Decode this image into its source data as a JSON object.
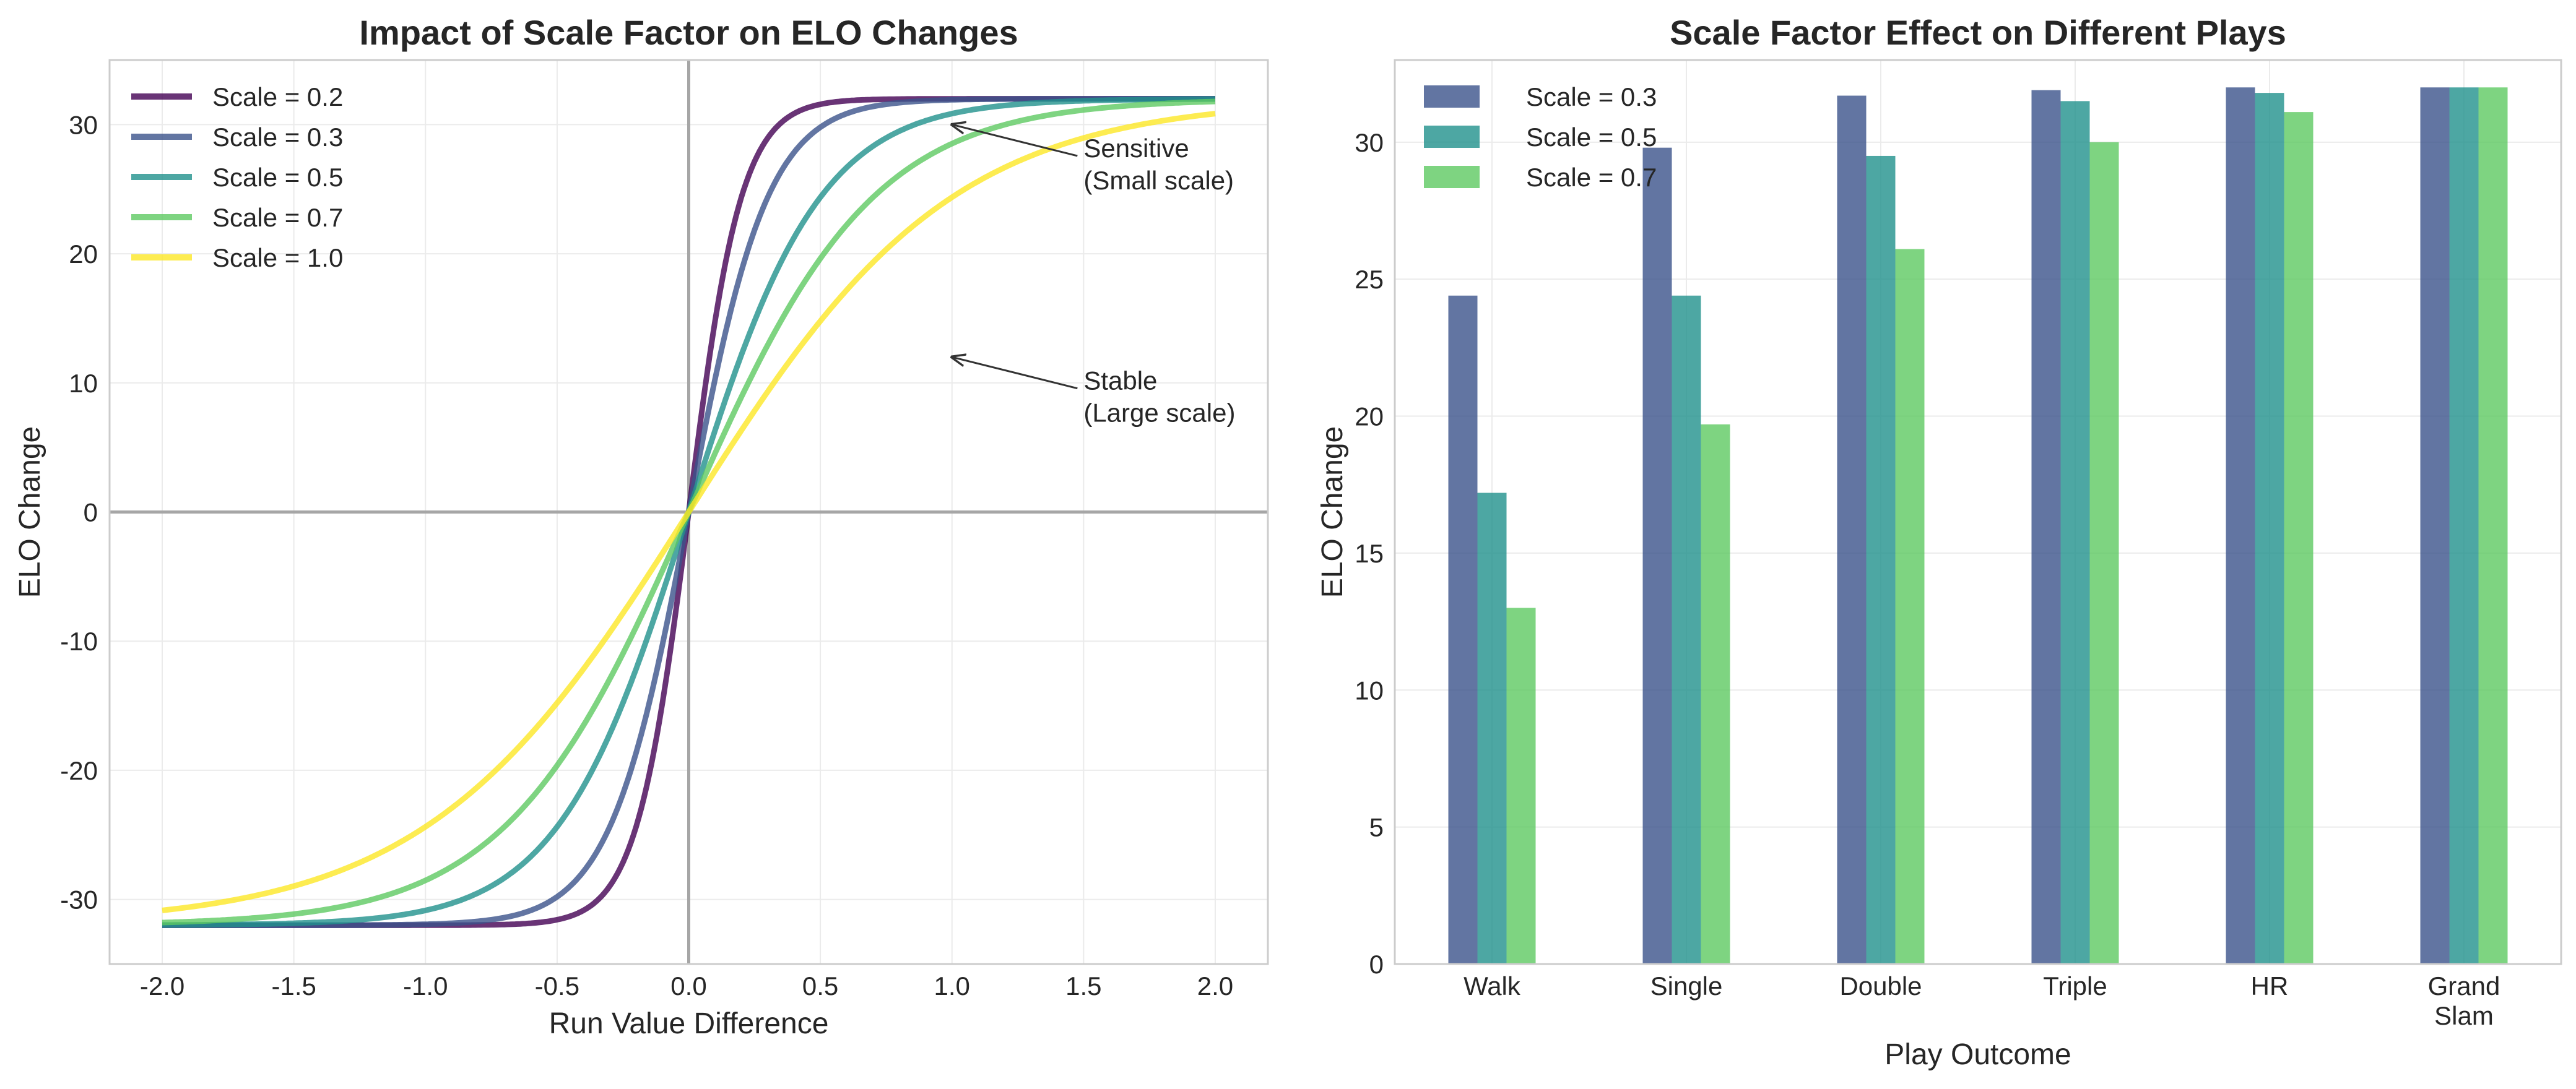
{
  "chart_data": [
    {
      "type": "line",
      "title": "Impact of Scale Factor on ELO Changes",
      "xlabel": "Run Value Difference",
      "ylabel": "ELO Change",
      "xlim": [
        -2.2,
        2.2
      ],
      "ylim": [
        -35,
        35
      ],
      "xticks": [
        -2.0,
        -1.5,
        -1.0,
        -0.5,
        0.0,
        0.5,
        1.0,
        1.5,
        2.0
      ],
      "xtick_labels": [
        "-2.0",
        "-1.5",
        "-1.0",
        "-0.5",
        "0.0",
        "0.5",
        "1.0",
        "1.5",
        "2.0"
      ],
      "yticks": [
        -30,
        -20,
        -10,
        0,
        10,
        20,
        30
      ],
      "ytick_labels": [
        "-30",
        "-20",
        "-10",
        "0",
        "10",
        "20",
        "30"
      ],
      "grid": true,
      "legend_position": "top-left",
      "max_change": 32,
      "x_range": [
        -2.0,
        2.0
      ],
      "series": [
        {
          "name": "Scale = 0.2",
          "scale": 0.2,
          "color": "#440154"
        },
        {
          "name": "Scale = 0.3",
          "scale": 0.3,
          "color": "#3b528b"
        },
        {
          "name": "Scale = 0.5",
          "scale": 0.5,
          "color": "#21918c"
        },
        {
          "name": "Scale = 0.7",
          "scale": 0.7,
          "color": "#5ec962"
        },
        {
          "name": "Scale = 1.0",
          "scale": 1.0,
          "color": "#fde725"
        }
      ],
      "annotations": [
        {
          "lines": [
            "Sensitive",
            "(Small scale)"
          ],
          "arrow_to": [
            1.0,
            30
          ],
          "text_at": [
            1.5,
            27
          ]
        },
        {
          "lines": [
            "Stable",
            "(Large scale)"
          ],
          "arrow_to": [
            1.0,
            12
          ],
          "text_at": [
            1.5,
            9
          ]
        }
      ],
      "reference_lines": {
        "x": 0,
        "y": 0
      }
    },
    {
      "type": "bar",
      "title": "Scale Factor Effect on Different Plays",
      "xlabel": "Play Outcome",
      "ylabel": "ELO Change",
      "ylim": [
        0,
        33
      ],
      "yticks": [
        0,
        5,
        10,
        15,
        20,
        25,
        30
      ],
      "ytick_labels": [
        "0",
        "5",
        "10",
        "15",
        "20",
        "25",
        "30"
      ],
      "grid": true,
      "legend_position": "top-left",
      "categories": [
        [
          "Walk"
        ],
        [
          "Single"
        ],
        [
          "Double"
        ],
        [
          "Triple"
        ],
        [
          "HR"
        ],
        [
          "Grand",
          "Slam"
        ]
      ],
      "series": [
        {
          "name": "Scale = 0.3",
          "color": "#3b528b",
          "values": [
            24.4,
            29.8,
            31.7,
            31.9,
            32.0,
            32.0
          ]
        },
        {
          "name": "Scale = 0.5",
          "color": "#21918c",
          "values": [
            17.2,
            24.4,
            29.5,
            31.5,
            31.8,
            32.0
          ]
        },
        {
          "name": "Scale = 0.7",
          "color": "#5ec962",
          "values": [
            13.0,
            19.7,
            26.1,
            30.0,
            31.1,
            32.0
          ]
        }
      ]
    }
  ]
}
